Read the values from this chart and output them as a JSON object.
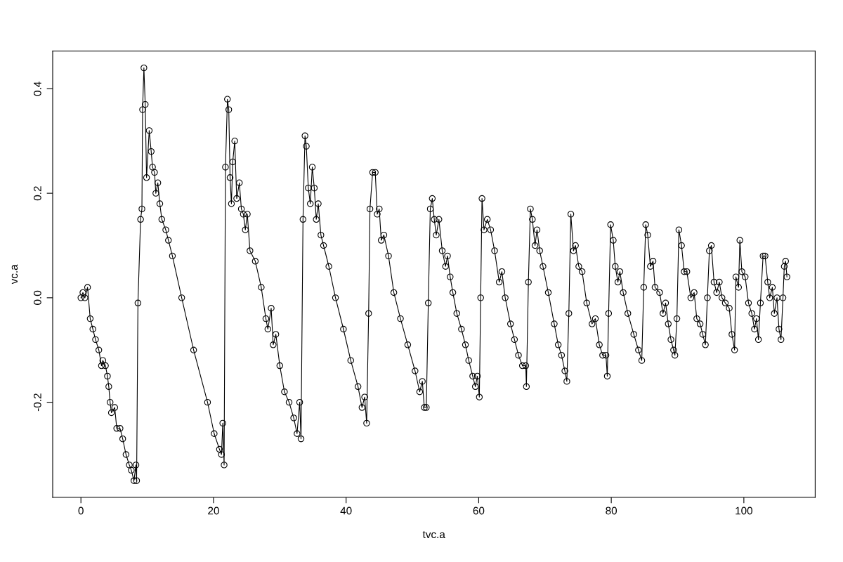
{
  "chart_data": {
    "type": "line",
    "xlabel": "tvc.a",
    "ylabel": "vc.a",
    "marker": "circle",
    "line_style": "solid",
    "grid": false,
    "legend": false,
    "xlim": [
      -4.26,
      110.76
    ],
    "ylim": [
      -0.382,
      0.472
    ],
    "xticks": [
      0,
      20,
      40,
      60,
      80,
      100
    ],
    "yticks": [
      {
        "value": -0.2,
        "label": "-0.2"
      },
      {
        "value": 0.0,
        "label": "0.0"
      },
      {
        "value": 0.2,
        "label": "0.2"
      },
      {
        "value": 0.4,
        "label": "0.4"
      }
    ],
    "series": [
      {
        "color": "#000000",
        "x": [
          0,
          0.3,
          0.6,
          1,
          1.4,
          1.8,
          2.2,
          2.7,
          3.1,
          3.3,
          3.7,
          4.0,
          4.2,
          4.4,
          4.6,
          5.1,
          5.4,
          5.9,
          6.3,
          6.8,
          7.3,
          7.6,
          8.0,
          8.3,
          8.4,
          8.6,
          9.0,
          9.2,
          9.3,
          9.5,
          9.7,
          9.9,
          10.3,
          10.6,
          10.8,
          11.1,
          11.3,
          11.6,
          11.9,
          12.2,
          12.8,
          13.2,
          13.8,
          15.2,
          17,
          19.1,
          20.1,
          20.9,
          21.2,
          21.4,
          21.6,
          21.8,
          22.1,
          22.3,
          22.5,
          22.7,
          22.9,
          23.2,
          23.5,
          23.9,
          24.2,
          24.5,
          24.8,
          25.1,
          25.5,
          26.3,
          27.2,
          27.9,
          28.2,
          28.7,
          29.0,
          29.4,
          30.0,
          30.7,
          31.4,
          32.1,
          32.6,
          33.0,
          33.2,
          33.5,
          33.8,
          34.0,
          34.3,
          34.6,
          34.9,
          35.2,
          35.5,
          35.8,
          36.2,
          36.6,
          37.4,
          38.4,
          39.6,
          40.7,
          41.8,
          42.4,
          42.8,
          43.1,
          43.4,
          43.6,
          44.0,
          44.4,
          44.7,
          45.0,
          45.3,
          45.7,
          46.4,
          47.2,
          48.2,
          49.3,
          50.4,
          51.1,
          51.5,
          51.8,
          52.1,
          52.4,
          52.7,
          53.0,
          53.3,
          53.6,
          54.0,
          54.5,
          55.0,
          55.3,
          55.7,
          56.1,
          56.7,
          57.4,
          58.0,
          58.5,
          59.1,
          59.5,
          59.8,
          60.1,
          60.3,
          60.5,
          60.8,
          61.3,
          61.8,
          62.4,
          63.1,
          63.5,
          64.0,
          64.8,
          65.4,
          66.0,
          66.6,
          67.1,
          67.2,
          67.5,
          67.8,
          68.1,
          68.5,
          68.8,
          69.2,
          69.7,
          70.5,
          71.4,
          72.0,
          72.5,
          73.0,
          73.3,
          73.6,
          73.9,
          74.3,
          74.6,
          75.1,
          75.6,
          76.3,
          77.1,
          77.6,
          78.2,
          78.7,
          79.2,
          79.4,
          79.6,
          79.9,
          80.3,
          80.6,
          81.0,
          81.3,
          81.8,
          82.5,
          83.4,
          84.1,
          84.6,
          84.9,
          85.2,
          85.5,
          85.9,
          86.3,
          86.6,
          87.3,
          87.8,
          88.2,
          88.6,
          89.0,
          89.4,
          89.6,
          89.9,
          90.2,
          90.6,
          91.0,
          91.4,
          92.0,
          92.5,
          92.9,
          93.4,
          93.8,
          94.2,
          94.5,
          94.8,
          95.1,
          95.5,
          95.9,
          96.3,
          96.7,
          97.2,
          97.8,
          98.2,
          98.6,
          98.8,
          99.2,
          99.4,
          99.7,
          100.2,
          100.7,
          101.2,
          101.6,
          101.9,
          102.2,
          102.5,
          102.9,
          103.2,
          103.6,
          103.9,
          104.3,
          104.6,
          105.0,
          105.3,
          105.6,
          105.9,
          106.1,
          106.3,
          106.5
        ],
        "values": [
          0,
          0.01,
          0.0,
          0.02,
          -0.04,
          -0.06,
          -0.08,
          -0.1,
          -0.13,
          -0.12,
          -0.13,
          -0.15,
          -0.17,
          -0.2,
          -0.22,
          -0.21,
          -0.25,
          -0.25,
          -0.27,
          -0.3,
          -0.32,
          -0.33,
          -0.35,
          -0.32,
          -0.35,
          -0.01,
          0.15,
          0.17,
          0.36,
          0.44,
          0.37,
          0.23,
          0.32,
          0.28,
          0.25,
          0.24,
          0.2,
          0.22,
          0.18,
          0.15,
          0.13,
          0.11,
          0.08,
          0.0,
          -0.1,
          -0.2,
          -0.26,
          -0.29,
          -0.3,
          -0.24,
          -0.32,
          0.25,
          0.38,
          0.36,
          0.23,
          0.18,
          0.26,
          0.3,
          0.19,
          0.22,
          0.17,
          0.16,
          0.13,
          0.16,
          0.09,
          0.07,
          0.02,
          -0.04,
          -0.06,
          -0.02,
          -0.09,
          -0.07,
          -0.13,
          -0.18,
          -0.2,
          -0.23,
          -0.26,
          -0.2,
          -0.27,
          0.15,
          0.31,
          0.29,
          0.21,
          0.18,
          0.25,
          0.21,
          0.15,
          0.18,
          0.12,
          0.1,
          0.06,
          0.0,
          -0.06,
          -0.12,
          -0.17,
          -0.21,
          -0.19,
          -0.24,
          -0.03,
          0.17,
          0.24,
          0.24,
          0.16,
          0.17,
          0.11,
          0.12,
          0.08,
          0.01,
          -0.04,
          -0.09,
          -0.14,
          -0.18,
          -0.16,
          -0.21,
          -0.21,
          -0.01,
          0.17,
          0.19,
          0.15,
          0.12,
          0.15,
          0.09,
          0.06,
          0.08,
          0.04,
          0.01,
          -0.03,
          -0.06,
          -0.09,
          -0.12,
          -0.15,
          -0.17,
          -0.15,
          -0.19,
          0.0,
          0.19,
          0.13,
          0.15,
          0.13,
          0.09,
          0.03,
          0.05,
          0.0,
          -0.05,
          -0.08,
          -0.11,
          -0.13,
          -0.13,
          -0.17,
          0.03,
          0.17,
          0.15,
          0.1,
          0.13,
          0.09,
          0.06,
          0.01,
          -0.05,
          -0.09,
          -0.11,
          -0.14,
          -0.16,
          -0.03,
          0.16,
          0.09,
          0.1,
          0.06,
          0.05,
          -0.01,
          -0.05,
          -0.04,
          -0.09,
          -0.11,
          -0.11,
          -0.15,
          -0.03,
          0.14,
          0.11,
          0.06,
          0.03,
          0.05,
          0.01,
          -0.03,
          -0.07,
          -0.1,
          -0.12,
          0.02,
          0.14,
          0.12,
          0.06,
          0.07,
          0.02,
          0.01,
          -0.03,
          -0.01,
          -0.05,
          -0.08,
          -0.1,
          -0.11,
          -0.04,
          0.13,
          0.1,
          0.05,
          0.05,
          0.0,
          0.01,
          -0.04,
          -0.05,
          -0.07,
          -0.09,
          0.0,
          0.09,
          0.1,
          0.03,
          0.01,
          0.03,
          0.0,
          -0.01,
          -0.02,
          -0.07,
          -0.1,
          0.04,
          0.02,
          0.11,
          0.05,
          0.04,
          -0.01,
          -0.03,
          -0.06,
          -0.04,
          -0.08,
          -0.01,
          0.08,
          0.08,
          0.03,
          0.0,
          0.02,
          -0.03,
          0.0,
          -0.06,
          -0.08,
          0.0,
          0.06,
          0.07,
          0.04
        ]
      }
    ]
  }
}
